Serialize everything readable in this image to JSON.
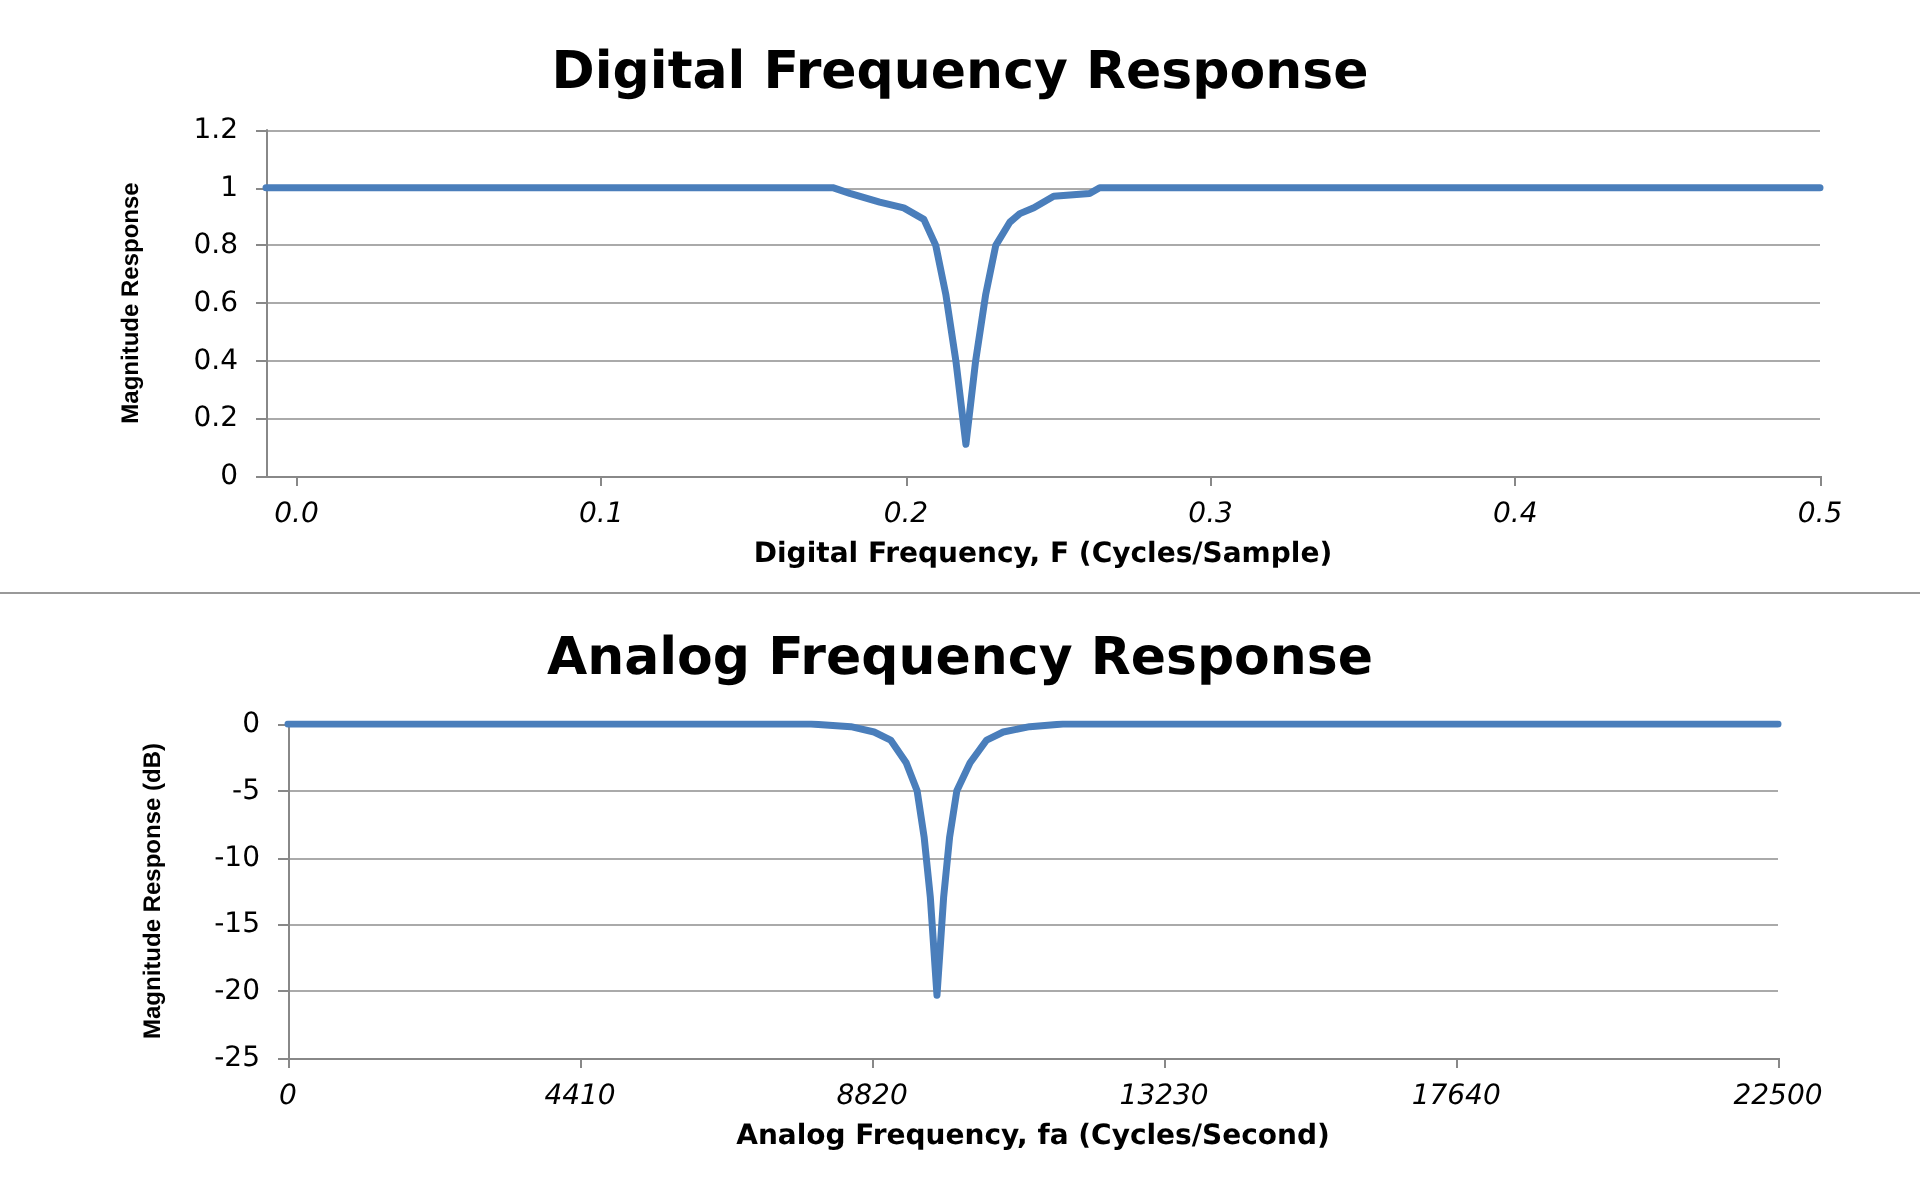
{
  "chart_data": [
    {
      "type": "line",
      "title": "Digital Frequency Response",
      "xlabel": "Digital Frequency, F (Cycles/Sample)",
      "ylabel": "Magnitude Response",
      "xlim": [
        -0.01,
        0.5
      ],
      "xticks": [
        {
          "value": 0,
          "label": "0.0"
        },
        0.1,
        0.2,
        0.3,
        0.4,
        0.5
      ],
      "ylim": [
        0,
        1.2
      ],
      "yticks": [
        0,
        0.2,
        0.4,
        0.6,
        0.8,
        1,
        1.2
      ],
      "grid": "y",
      "marker": "none",
      "line_style": "solid",
      "series": [
        {
          "color": "#4a7ebb",
          "x": [
            -0.01,
            0.176,
            0.1816,
            0.1914,
            0.1993,
            0.2059,
            0.2098,
            0.2131,
            0.2164,
            0.2197,
            0.2229,
            0.2262,
            0.2295,
            0.2341,
            0.2374,
            0.242,
            0.2485,
            0.2603,
            0.2636,
            0.5
          ],
          "values": [
            1,
            1,
            0.98,
            0.95,
            0.93,
            0.89,
            0.8,
            0.63,
            0.4,
            0.11,
            0.4,
            0.63,
            0.8,
            0.88,
            0.91,
            0.93,
            0.97,
            0.98,
            1,
            1
          ]
        }
      ]
    },
    {
      "type": "line",
      "title": "Analog Frequency Response",
      "xlabel": "Analog Frequency, fa (Cycles/Second)",
      "ylabel": "Magnitude Response (dB)",
      "xlim": [
        0,
        22500
      ],
      "xticks": [
        0,
        4410,
        8820,
        13230,
        17640,
        22500
      ],
      "ylim": [
        -25,
        0
      ],
      "yticks": [
        -25,
        -20,
        -15,
        -10,
        -5,
        0
      ],
      "grid": "y",
      "marker": "none",
      "line_style": "solid",
      "series": [
        {
          "color": "#4a7ebb",
          "x": [
            0,
            7900,
            8500,
            8850,
            9100,
            9335,
            9500,
            9607,
            9700,
            9800,
            9900,
            9990,
            10100,
            10300,
            10550,
            10800,
            11200,
            11700,
            22500
          ],
          "values": [
            0,
            0,
            -0.2,
            -0.6,
            -1.2,
            -2.9,
            -5,
            -8.5,
            -13,
            -20.3,
            -13,
            -8.5,
            -5,
            -2.9,
            -1.2,
            -0.6,
            -0.2,
            0,
            0
          ]
        }
      ]
    }
  ]
}
